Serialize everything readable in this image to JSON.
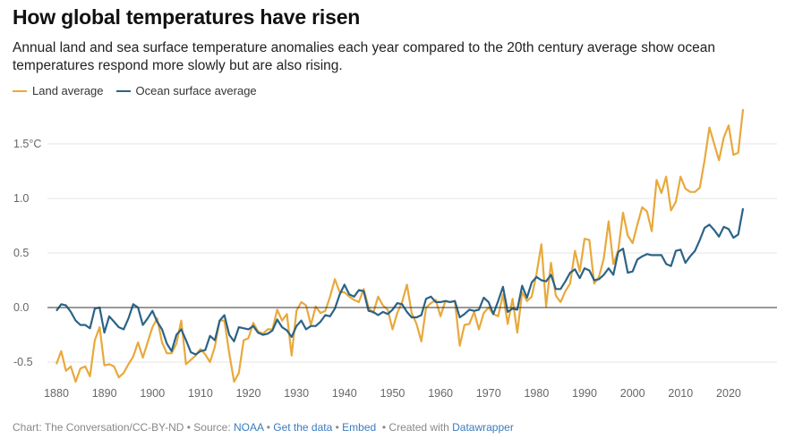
{
  "title": "How global temperatures have risen",
  "subtitle": "Annual land and sea surface temperature anomalies each year compared to the 20th century average show ocean temperatures respond more slowly but are also rising.",
  "footer": {
    "credit": "Chart: The Conversation/CC-BY-ND",
    "sep": " • ",
    "source_label": "Source: ",
    "source_link": "NOAA",
    "get_data": "Get the data",
    "embed": "Embed",
    "created_with": "Created with ",
    "datawrapper": "Datawrapper"
  },
  "chart_data": {
    "type": "line",
    "title": "How global temperatures have risen",
    "xlabel": "",
    "ylabel": "",
    "xlim": [
      1880,
      2023
    ],
    "ylim": [
      -0.6,
      1.85
    ],
    "grid": true,
    "legend_position": "top-left",
    "x_ticks": [
      1880,
      1890,
      1900,
      1910,
      1920,
      1930,
      1940,
      1950,
      1960,
      1970,
      1980,
      1990,
      2000,
      2010,
      2020
    ],
    "y_ticks": [
      {
        "value": -0.5,
        "label": "-0.5"
      },
      {
        "value": 0.0,
        "label": "0.0"
      },
      {
        "value": 0.5,
        "label": "0.5"
      },
      {
        "value": 1.0,
        "label": "1.0"
      },
      {
        "value": 1.5,
        "label": "1.5°C"
      }
    ],
    "x_start": 1880,
    "series": [
      {
        "name": "Land average",
        "color": "#e8a93c",
        "values": [
          -0.52,
          -0.4,
          -0.58,
          -0.54,
          -0.68,
          -0.56,
          -0.54,
          -0.63,
          -0.3,
          -0.18,
          -0.53,
          -0.52,
          -0.54,
          -0.64,
          -0.6,
          -0.52,
          -0.45,
          -0.32,
          -0.46,
          -0.32,
          -0.18,
          -0.1,
          -0.32,
          -0.42,
          -0.42,
          -0.33,
          -0.12,
          -0.52,
          -0.48,
          -0.44,
          -0.38,
          -0.43,
          -0.5,
          -0.36,
          -0.12,
          -0.12,
          -0.42,
          -0.68,
          -0.6,
          -0.3,
          -0.28,
          -0.14,
          -0.22,
          -0.24,
          -0.2,
          -0.2,
          -0.02,
          -0.12,
          -0.06,
          -0.44,
          -0.03,
          0.05,
          0.02,
          -0.16,
          0.01,
          -0.05,
          -0.03,
          0.1,
          0.26,
          0.14,
          0.14,
          0.1,
          0.07,
          0.05,
          0.17,
          0.0,
          -0.05,
          0.1,
          0.02,
          -0.02,
          -0.2,
          -0.05,
          0.05,
          0.21,
          -0.05,
          -0.15,
          -0.31,
          0.0,
          0.04,
          0.07,
          -0.08,
          0.06,
          0.05,
          0.06,
          -0.35,
          -0.16,
          -0.15,
          -0.04,
          -0.2,
          -0.05,
          0.0,
          -0.06,
          -0.08,
          0.12,
          -0.15,
          0.08,
          -0.23,
          0.14,
          0.06,
          0.1,
          0.31,
          0.58,
          0.01,
          0.41,
          0.11,
          0.05,
          0.15,
          0.22,
          0.52,
          0.33,
          0.63,
          0.62,
          0.22,
          0.28,
          0.45,
          0.79,
          0.4,
          0.52,
          0.87,
          0.66,
          0.59,
          0.76,
          0.92,
          0.88,
          0.7,
          1.17,
          1.05,
          1.2,
          0.89,
          0.97,
          1.2,
          1.09,
          1.06,
          1.06,
          1.1,
          1.35,
          1.65,
          1.5,
          1.35,
          1.56,
          1.67,
          1.4,
          1.42,
          1.82
        ]
      },
      {
        "name": "Ocean surface average",
        "color": "#2b6386",
        "values": [
          -0.03,
          0.03,
          0.02,
          -0.04,
          -0.12,
          -0.16,
          -0.16,
          -0.19,
          -0.01,
          0.0,
          -0.23,
          -0.08,
          -0.13,
          -0.18,
          -0.2,
          -0.1,
          0.03,
          0.0,
          -0.16,
          -0.1,
          -0.03,
          -0.13,
          -0.2,
          -0.33,
          -0.4,
          -0.25,
          -0.2,
          -0.3,
          -0.41,
          -0.43,
          -0.4,
          -0.39,
          -0.26,
          -0.3,
          -0.12,
          -0.07,
          -0.25,
          -0.31,
          -0.18,
          -0.19,
          -0.2,
          -0.17,
          -0.23,
          -0.25,
          -0.24,
          -0.21,
          -0.11,
          -0.18,
          -0.21,
          -0.27,
          -0.17,
          -0.12,
          -0.2,
          -0.17,
          -0.17,
          -0.13,
          -0.07,
          -0.08,
          -0.01,
          0.12,
          0.21,
          0.12,
          0.1,
          0.16,
          0.15,
          -0.03,
          -0.04,
          -0.07,
          -0.04,
          -0.06,
          -0.02,
          0.04,
          0.03,
          -0.04,
          -0.09,
          -0.09,
          -0.07,
          0.08,
          0.1,
          0.05,
          0.05,
          0.06,
          0.05,
          0.06,
          -0.09,
          -0.06,
          -0.02,
          -0.03,
          -0.02,
          0.09,
          0.05,
          -0.06,
          0.06,
          0.19,
          -0.04,
          -0.01,
          -0.02,
          0.2,
          0.09,
          0.23,
          0.28,
          0.25,
          0.24,
          0.3,
          0.17,
          0.17,
          0.24,
          0.32,
          0.35,
          0.27,
          0.36,
          0.34,
          0.25,
          0.26,
          0.3,
          0.36,
          0.3,
          0.51,
          0.54,
          0.32,
          0.33,
          0.44,
          0.47,
          0.49,
          0.48,
          0.48,
          0.48,
          0.4,
          0.38,
          0.52,
          0.53,
          0.41,
          0.47,
          0.52,
          0.62,
          0.73,
          0.76,
          0.71,
          0.65,
          0.74,
          0.72,
          0.64,
          0.67,
          0.91
        ]
      }
    ]
  }
}
